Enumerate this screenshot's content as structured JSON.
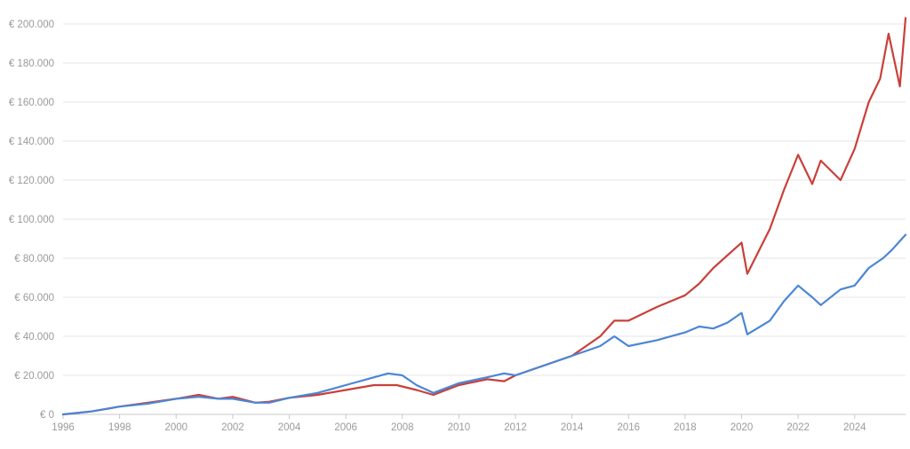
{
  "chart_data": {
    "type": "line",
    "xlim": [
      1996,
      2025.8
    ],
    "ylim": [
      0,
      200000
    ],
    "y_ticks": [
      0,
      20000,
      40000,
      60000,
      80000,
      100000,
      120000,
      140000,
      160000,
      180000,
      200000
    ],
    "y_tick_labels": [
      "€ 0",
      "€ 20.000",
      "€ 40.000",
      "€ 60.000",
      "€ 80.000",
      "€ 100.000",
      "€ 120.000",
      "€ 140.000",
      "€ 160.000",
      "€ 180.000",
      "€ 200.000"
    ],
    "x_ticks": [
      1996,
      1998,
      2000,
      2002,
      2004,
      2006,
      2008,
      2010,
      2012,
      2014,
      2016,
      2018,
      2020,
      2022,
      2024
    ],
    "x_tick_labels": [
      "1996",
      "1998",
      "2000",
      "2002",
      "2004",
      "2006",
      "2008",
      "2010",
      "2012",
      "2014",
      "2016",
      "2018",
      "2020",
      "2022",
      "2024"
    ],
    "grid": "horizontal",
    "legend": "none",
    "series": [
      {
        "color": "#c9403a",
        "x": [
          1996,
          1997,
          1998,
          1999,
          2000,
          2000.8,
          2001.5,
          2002,
          2002.8,
          2003.3,
          2004,
          2005,
          2006,
          2007,
          2007.8,
          2008.5,
          2009.1,
          2010,
          2011,
          2011.6,
          2012,
          2013,
          2014,
          2015,
          2015.5,
          2016,
          2017,
          2018,
          2018.5,
          2019,
          2020,
          2020.2,
          2021,
          2021.5,
          2022,
          2022.5,
          2022.8,
          2023.5,
          2024,
          2024.5,
          2024.9,
          2025.2,
          2025.6,
          2025.8
        ],
        "y": [
          0,
          1500,
          4000,
          6000,
          8000,
          10000,
          8000,
          9000,
          6000,
          6500,
          8500,
          10000,
          12500,
          15000,
          15000,
          12500,
          10000,
          15000,
          18000,
          17000,
          20000,
          25000,
          30000,
          40000,
          48000,
          48000,
          55000,
          61000,
          67000,
          75000,
          88000,
          72000,
          95000,
          115000,
          133000,
          118000,
          130000,
          120000,
          136000,
          160000,
          172000,
          195000,
          168000,
          203000
        ]
      },
      {
        "color": "#4a86d6",
        "x": [
          1996,
          1997,
          1998,
          1999,
          2000,
          2000.8,
          2001.5,
          2002,
          2002.8,
          2003.3,
          2004,
          2005,
          2006,
          2007,
          2007.5,
          2008,
          2008.5,
          2009.1,
          2010,
          2011,
          2011.6,
          2012,
          2013,
          2014,
          2015,
          2015.5,
          2016,
          2017,
          2018,
          2018.5,
          2019,
          2019.5,
          2020,
          2020.2,
          2021,
          2021.5,
          2022,
          2022.5,
          2022.8,
          2023.5,
          2024,
          2024.5,
          2025,
          2025.3,
          2025.8
        ],
        "y": [
          0,
          1500,
          4000,
          5500,
          8000,
          9000,
          8000,
          8000,
          6000,
          6000,
          8500,
          11000,
          15000,
          19000,
          21000,
          20000,
          15000,
          11000,
          16000,
          19000,
          21000,
          20000,
          25000,
          30000,
          35000,
          40000,
          35000,
          38000,
          42000,
          45000,
          44000,
          47000,
          52000,
          41000,
          48000,
          58000,
          66000,
          60000,
          56000,
          64000,
          66000,
          75000,
          80000,
          84000,
          92000
        ]
      }
    ]
  }
}
